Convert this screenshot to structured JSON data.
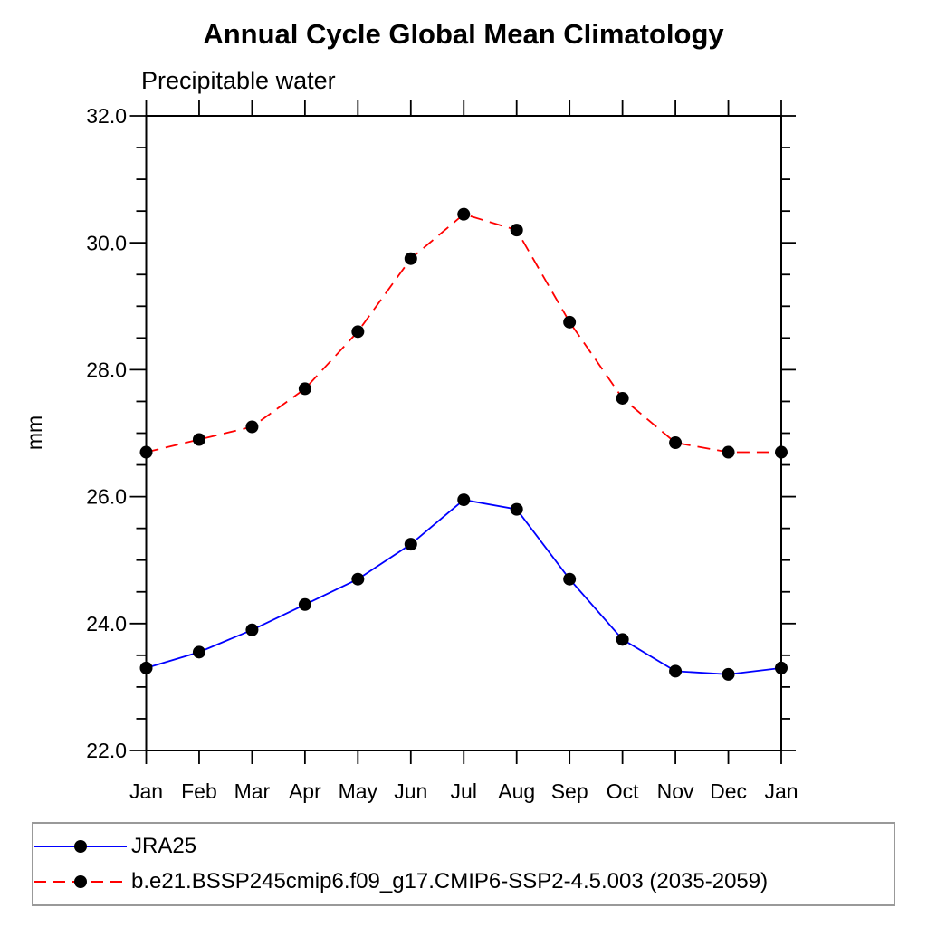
{
  "chart_data": {
    "type": "line",
    "title": "Annual Cycle Global Mean Climatology",
    "subtitle": "Precipitable water",
    "ylabel": "mm",
    "xlabel": "",
    "categories": [
      "Jan",
      "Feb",
      "Mar",
      "Apr",
      "May",
      "Jun",
      "Jul",
      "Aug",
      "Sep",
      "Oct",
      "Nov",
      "Dec",
      "Jan"
    ],
    "series": [
      {
        "name": "JRA25",
        "color": "#0000ff",
        "line_style": "solid",
        "marker": "filled-circle",
        "values": [
          23.3,
          23.55,
          23.9,
          24.3,
          24.7,
          25.25,
          25.95,
          25.8,
          24.7,
          23.75,
          23.25,
          23.2,
          23.3
        ]
      },
      {
        "name": "b.e21.BSSP245cmip6.f09_g17.CMIP6-SSP2-4.5.003 (2035-2059)",
        "color": "#ff0000",
        "line_style": "dashed",
        "marker": "filled-circle",
        "values": [
          26.7,
          26.9,
          27.1,
          27.7,
          28.6,
          29.75,
          30.45,
          30.2,
          28.75,
          27.55,
          26.85,
          26.7,
          26.7
        ]
      }
    ],
    "marker_color": "#000000",
    "ylim": [
      22.0,
      32.0
    ],
    "y_major_ticks": [
      {
        "value": 22.0,
        "label": "22.0"
      },
      {
        "value": 24.0,
        "label": "24.0"
      },
      {
        "value": 26.0,
        "label": "26.0"
      },
      {
        "value": 28.0,
        "label": "28.0"
      },
      {
        "value": 30.0,
        "label": "30.0"
      },
      {
        "value": 32.0,
        "label": "32.0"
      }
    ],
    "y_minor_step": 0.5,
    "grid": false,
    "legend_position": "bottom-left-box",
    "legend_border_color": "#999999"
  }
}
